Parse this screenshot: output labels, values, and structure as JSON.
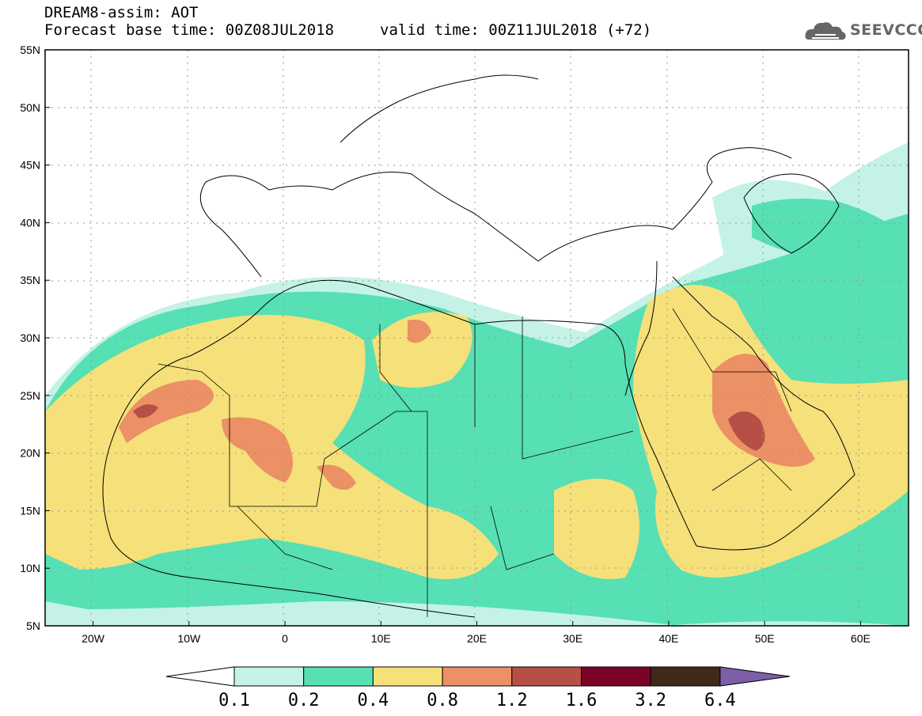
{
  "header": {
    "line1": "DREAM8-assim: AOT",
    "line2": "Forecast base time: 00Z08JUL2018",
    "valid": "valid time: 00Z11JUL2018 (+72)"
  },
  "logo": {
    "text": "SEEVCCC",
    "icon": "cloud-icon"
  },
  "map": {
    "lon_range": [
      -25,
      65
    ],
    "lat_range": [
      5,
      55
    ],
    "lat_labels": [
      "55N",
      "50N",
      "45N",
      "40N",
      "35N",
      "30N",
      "25N",
      "20N",
      "15N",
      "10N",
      "5N"
    ],
    "lon_labels": [
      "20W",
      "10W",
      "0",
      "10E",
      "20E",
      "30E",
      "40E",
      "50E",
      "60E"
    ]
  },
  "colorbar": {
    "levels": [
      "0.1",
      "0.2",
      "0.4",
      "0.8",
      "1.2",
      "1.6",
      "3.2",
      "6.4"
    ],
    "colors": [
      "#ffffff",
      "#c4f2e6",
      "#56e0b4",
      "#f5e07a",
      "#ec9065",
      "#b65046",
      "#7c0228",
      "#40291b",
      "#7d5ea8"
    ]
  }
}
